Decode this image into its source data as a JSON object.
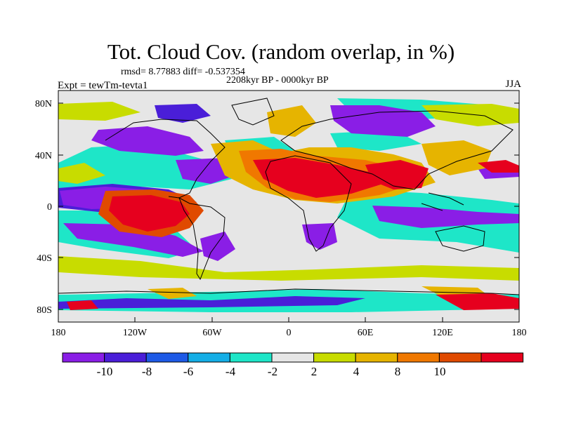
{
  "title": "Tot. Cloud Cov. (random overlap, in %)",
  "stats": "rmsd= 8.77883 diff= -0.537354",
  "period": "2208kyr BP - 0000kyr BP",
  "experiment": "Expt = tewTm-tevta1",
  "season": "JJA",
  "axes": {
    "y_ticks": [
      "80N",
      "40N",
      "0",
      "40S",
      "80S"
    ],
    "x_ticks": [
      "180",
      "120W",
      "60W",
      "0",
      "60E",
      "120E",
      "180"
    ]
  },
  "colorbar": {
    "labels": [
      "-10",
      "-8",
      "-6",
      "-4",
      "-2",
      "2",
      "4",
      "8",
      "10"
    ],
    "colors": [
      "#8a1ee6",
      "#4a1ed8",
      "#1e5ae6",
      "#14aee6",
      "#1ee6c8",
      "#e6e6e6",
      "#c8dc00",
      "#e6b400",
      "#f07800",
      "#e04a00",
      "#e6001e"
    ]
  }
}
